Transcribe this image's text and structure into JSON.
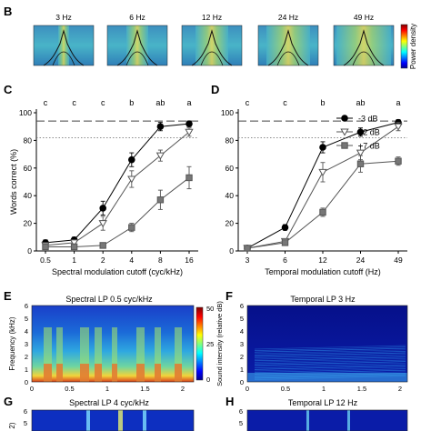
{
  "panel_b": {
    "letter": "B",
    "thumbnails": [
      "3 Hz",
      "6 Hz",
      "12 Hz",
      "24 Hz",
      "49 Hz"
    ],
    "colorbar_label": "Power density"
  },
  "chart_data": [
    {
      "panel": "C",
      "type": "line",
      "ylabel": "Words correct (%)",
      "xlabel": "Spectral modulation cutoff (cyc/kHz)",
      "categories": [
        "0.5",
        "1",
        "2",
        "4",
        "8",
        "16"
      ],
      "ylim": [
        0,
        100
      ],
      "yticks": [
        "0",
        "20",
        "40",
        "60",
        "80",
        "100"
      ],
      "significance": [
        "c",
        "c",
        "c",
        "b",
        "ab",
        "a"
      ],
      "series": [
        {
          "name": "-3 dB",
          "marker": "circle",
          "values": [
            6,
            8,
            31,
            66,
            90,
            92
          ],
          "err": [
            2,
            2,
            5,
            5,
            3,
            2
          ]
        },
        {
          "name": "+2 dB",
          "marker": "triangle",
          "values": [
            4,
            6,
            20,
            52,
            69,
            86
          ],
          "err": [
            2,
            2,
            5,
            6,
            4,
            3
          ]
        },
        {
          "name": "+7 dB",
          "marker": "square",
          "values": [
            3,
            3,
            4,
            17,
            37,
            53
          ],
          "err": [
            1,
            1,
            1,
            3,
            7,
            8
          ]
        }
      ],
      "ref_lines": [
        94,
        82
      ]
    },
    {
      "panel": "D",
      "type": "line",
      "ylabel": "",
      "xlabel": "Temporal modulation cutoff (Hz)",
      "categories": [
        "3",
        "6",
        "12",
        "24",
        "49"
      ],
      "ylim": [
        0,
        100
      ],
      "yticks": [
        "0",
        "20",
        "40",
        "60",
        "80",
        "100"
      ],
      "significance": [
        "c",
        "c",
        "b",
        "ab",
        "a"
      ],
      "series": [
        {
          "name": "-3 dB",
          "marker": "circle",
          "values": [
            2,
            17,
            75,
            86,
            93
          ],
          "err": [
            1,
            2,
            4,
            3,
            2
          ]
        },
        {
          "name": "+2 dB",
          "marker": "triangle",
          "values": [
            2,
            7,
            57,
            71,
            90
          ],
          "err": [
            1,
            1,
            7,
            5,
            3
          ]
        },
        {
          "name": "+7 dB",
          "marker": "square",
          "values": [
            2,
            6,
            28,
            63,
            65
          ],
          "err": [
            1,
            1,
            3,
            6,
            3
          ]
        }
      ],
      "ref_lines": [
        94,
        82
      ],
      "legend": "top-right"
    }
  ],
  "panel_e": {
    "letter": "E",
    "title": "Spectral LP 0.5 cyc/kHz",
    "ylabel": "Frequency (kHz)",
    "yticks": [
      "0",
      "1",
      "2",
      "3",
      "4",
      "5",
      "6"
    ],
    "xticks": [
      "0",
      "0.5",
      "1",
      "1.5",
      "2"
    ],
    "colorbar_label": "Sound intensity (relative dB)",
    "colorbar_ticks": [
      "50",
      "25",
      "0"
    ]
  },
  "panel_f": {
    "letter": "F",
    "title": "Temporal LP 3 Hz",
    "yticks": [
      "0",
      "1",
      "2",
      "3",
      "4",
      "5",
      "6"
    ],
    "xticks": [
      "0",
      "0.5",
      "1",
      "1.5",
      "2"
    ]
  },
  "panel_g": {
    "letter": "G",
    "title": "Spectral LP 4 cyc/kHz",
    "ylabel_fragment": "2)",
    "yticks": [
      "6",
      "5"
    ]
  },
  "panel_h": {
    "letter": "H",
    "title": "Temporal LP 12 Hz",
    "yticks": [
      "6",
      "5"
    ]
  }
}
